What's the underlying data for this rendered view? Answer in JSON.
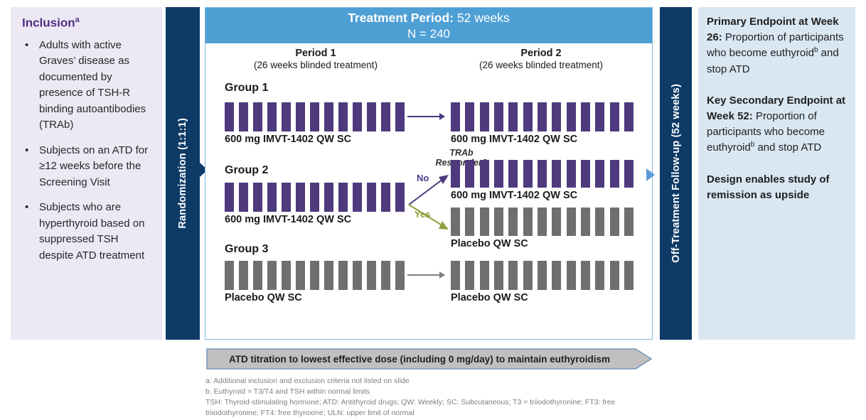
{
  "colors": {
    "navy": "#0E3A66",
    "header_blue": "#4E9FD4",
    "box_border": "#7FB8E0",
    "purple": "#4E3A7D",
    "gray": "#6F6F6F",
    "lavender_bg": "#ECE9F4",
    "endpoint_bg": "#D9E7F3",
    "olive": "#8F9E3A",
    "exit_arrow_blue": "#5B9BD5",
    "banner_fill": "#C0C0C0",
    "banner_border": "#7396B8"
  },
  "inclusion": {
    "title": "Inclusion",
    "title_sup": "a",
    "bullets": [
      "Adults with active Graves’ disease as documented by presence of TSH-R binding autoantibodies (TRAb)",
      "Subjects on an ATD for ≥12 weeks before the Screening Visit",
      "Subjects who are hyperthyroid based on suppressed TSH despite ATD treatment"
    ]
  },
  "randomization_label": "Randomization (1:1:1)",
  "followup_label": "Off-Treatment Follow-up (52 weeks)",
  "treatment_header": {
    "title_bold": "Treatment Period:",
    "title_rest": " 52 weeks",
    "n_line": "N = 240"
  },
  "periods": [
    {
      "name": "Period 1",
      "sub": "(26 weeks blinded treatment)"
    },
    {
      "name": "Period 2",
      "sub": "(26 weeks blinded treatment)"
    }
  ],
  "groups": [
    {
      "name": "Group 1",
      "period1": {
        "label": "600 mg IMVT-1402 QW SC",
        "ticks": {
          "count": 13,
          "color": "#4E3A7D"
        }
      },
      "period2": {
        "label": "600 mg IMVT-1402 QW SC",
        "ticks": {
          "count": 13,
          "color": "#4E3A7D"
        }
      }
    },
    {
      "name": "Group 2",
      "period1": {
        "label": "600 mg IMVT-1402 QW SC",
        "ticks": {
          "count": 13,
          "color": "#4E3A7D"
        }
      },
      "branch": {
        "question_line1": "TRAb",
        "question_line2": "Responder?",
        "no_label": "No",
        "yes_label": "Yes",
        "no_arm": {
          "label": "600 mg IMVT-1402 QW SC",
          "ticks": {
            "count": 13,
            "color": "#4E3A7D"
          }
        },
        "yes_arm": {
          "label": "Placebo QW SC",
          "ticks": {
            "count": 13,
            "color": "#6F6F6F"
          }
        }
      }
    },
    {
      "name": "Group 3",
      "period1": {
        "label": "Placebo QW SC",
        "ticks": {
          "count": 13,
          "color": "#6F6F6F"
        }
      },
      "period2": {
        "label": "Placebo QW SC",
        "ticks": {
          "count": 13,
          "color": "#6F6F6F"
        }
      }
    }
  ],
  "endpoints": {
    "p1_bold": "Primary Endpoint at Week 26:",
    "p1_text": " Proportion of participants who become euthyroid",
    "p1_sup": "b",
    "p1_tail": " and stop ATD",
    "p2_bold": "Key Secondary Endpoint at Week 52:",
    "p2_text": " Proportion of participants who become euthyroid",
    "p2_sup": "b",
    "p2_tail": " and stop ATD",
    "p3_bold": "Design enables study of remission  as upside"
  },
  "banner_text": "ATD titration to lowest effective dose (including 0 mg/day) to maintain euthyroidism",
  "footnotes": [
    "a: Additional inclusion and exclusion criteria not listed on slide",
    "b. Euthyroid = T3/T4 and TSH within normal limits",
    "TSH: Thyroid-stimulating hormone; ATD: Antithyroid drugs; QW: Weekly; SC: Subcutaneous; T3 = triiodothyronine; FT3: free triiodothyronine; FT4: free thyroxine; ULN: upper limit of normal"
  ]
}
